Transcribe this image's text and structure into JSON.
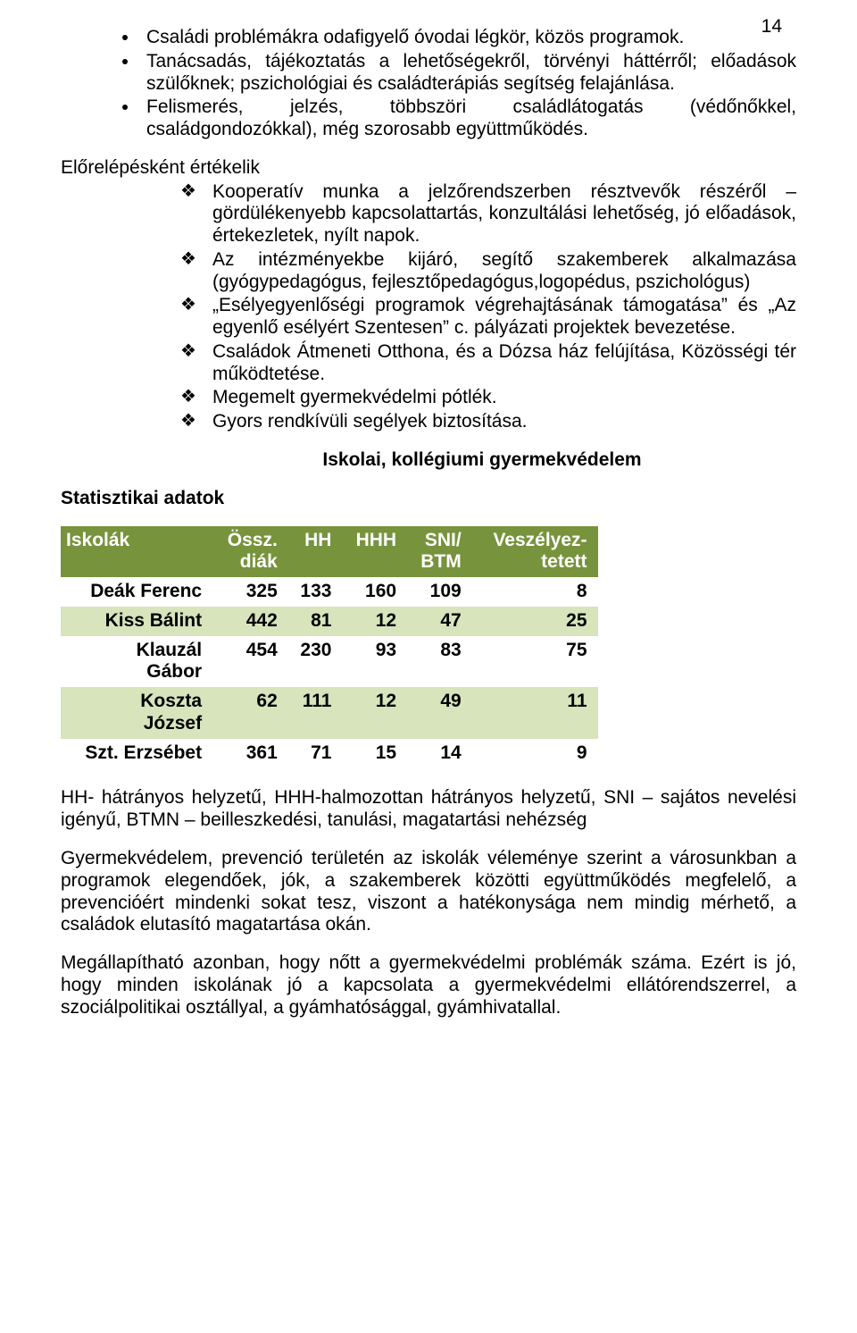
{
  "page_number": "14",
  "bullets": [
    "Családi problémákra odafigyelő óvodai légkör, közös programok.",
    "Tanácsadás, tájékoztatás a lehetőségekről, törvényi háttérről; előadások szülőknek; pszichológiai és családterápiás segítség felajánlása.",
    "Felismerés, jelzés, többszöri családlátogatás (védőnőkkel, családgondozókkal), még szorosabb együttműködés."
  ],
  "progress_heading": "Előrelépésként értékelik",
  "clubs": [
    "Kooperatív munka a jelzőrendszerben résztvevők részéről – gördülékenyebb kapcsolattartás, konzultálási lehetőség, jó előadások, értekezletek, nyílt napok.",
    "Az intézményekbe kijáró, segítő szakemberek alkalmazása (gyógypedagógus, fejlesztőpedagógus,logopédus, pszichológus)",
    "„Esélyegyenlőségi programok végrehajtásának támogatása” és „Az egyenlő esélyért Szentesen” c. pályázati projektek bevezetése.",
    "Családok Átmeneti Otthona, és a Dózsa ház felújítása, Közösségi tér működtetése.",
    "Megemelt gyermekvédelmi pótlék.",
    "Gyors rendkívüli segélyek biztosítása."
  ],
  "subtitle": "Iskolai, kollégiumi gyermekvédelem",
  "stats_heading": "Statisztikai adatok",
  "table": {
    "header_bg": "#77933c",
    "header_fg": "#ffffff",
    "row_even_bg": "#d7e4bc",
    "row_odd_bg": "#ffffff",
    "columns": [
      "Iskolák",
      "Össz.\ndiák",
      "HH",
      "HHH",
      "SNI/\nBTM",
      "Veszélyez-\ntetett"
    ],
    "rows": [
      [
        "Deák Ferenc",
        "325",
        "133",
        "160",
        "109",
        "8"
      ],
      [
        "Kiss Bálint",
        "442",
        "81",
        "12",
        "47",
        "25"
      ],
      [
        "Klauzál Gábor",
        "454",
        "230",
        "93",
        "83",
        "75"
      ],
      [
        "Koszta József",
        "62",
        "111",
        "12",
        "49",
        "11"
      ],
      [
        "Szt. Erzsébet",
        "361",
        "71",
        "15",
        "14",
        "9"
      ]
    ]
  },
  "legend": "HH- hátrányos helyzetű, HHH-halmozottan hátrányos helyzetű, SNI – sajátos nevelési igényű, BTMN – beilleszkedési, tanulási, magatartási nehézség",
  "para1": "Gyermekvédelem, prevenció  területén az iskolák véleménye szerint  a városunkban a programok elegendőek, jók, a szakemberek közötti együttműködés megfelelő, a prevencióért mindenki sokat tesz, viszont a hatékonysága nem mindig mérhető, a családok elutasító magatartása okán.",
  "para2": "Megállapítható azonban, hogy nőtt a gyermekvédelmi problémák száma. Ezért is jó, hogy minden iskolának jó a kapcsolata a gyermekvédelmi ellátórendszerrel, a szociálpolitikai osztállyal, a gyámhatósággal, gyámhivatallal."
}
